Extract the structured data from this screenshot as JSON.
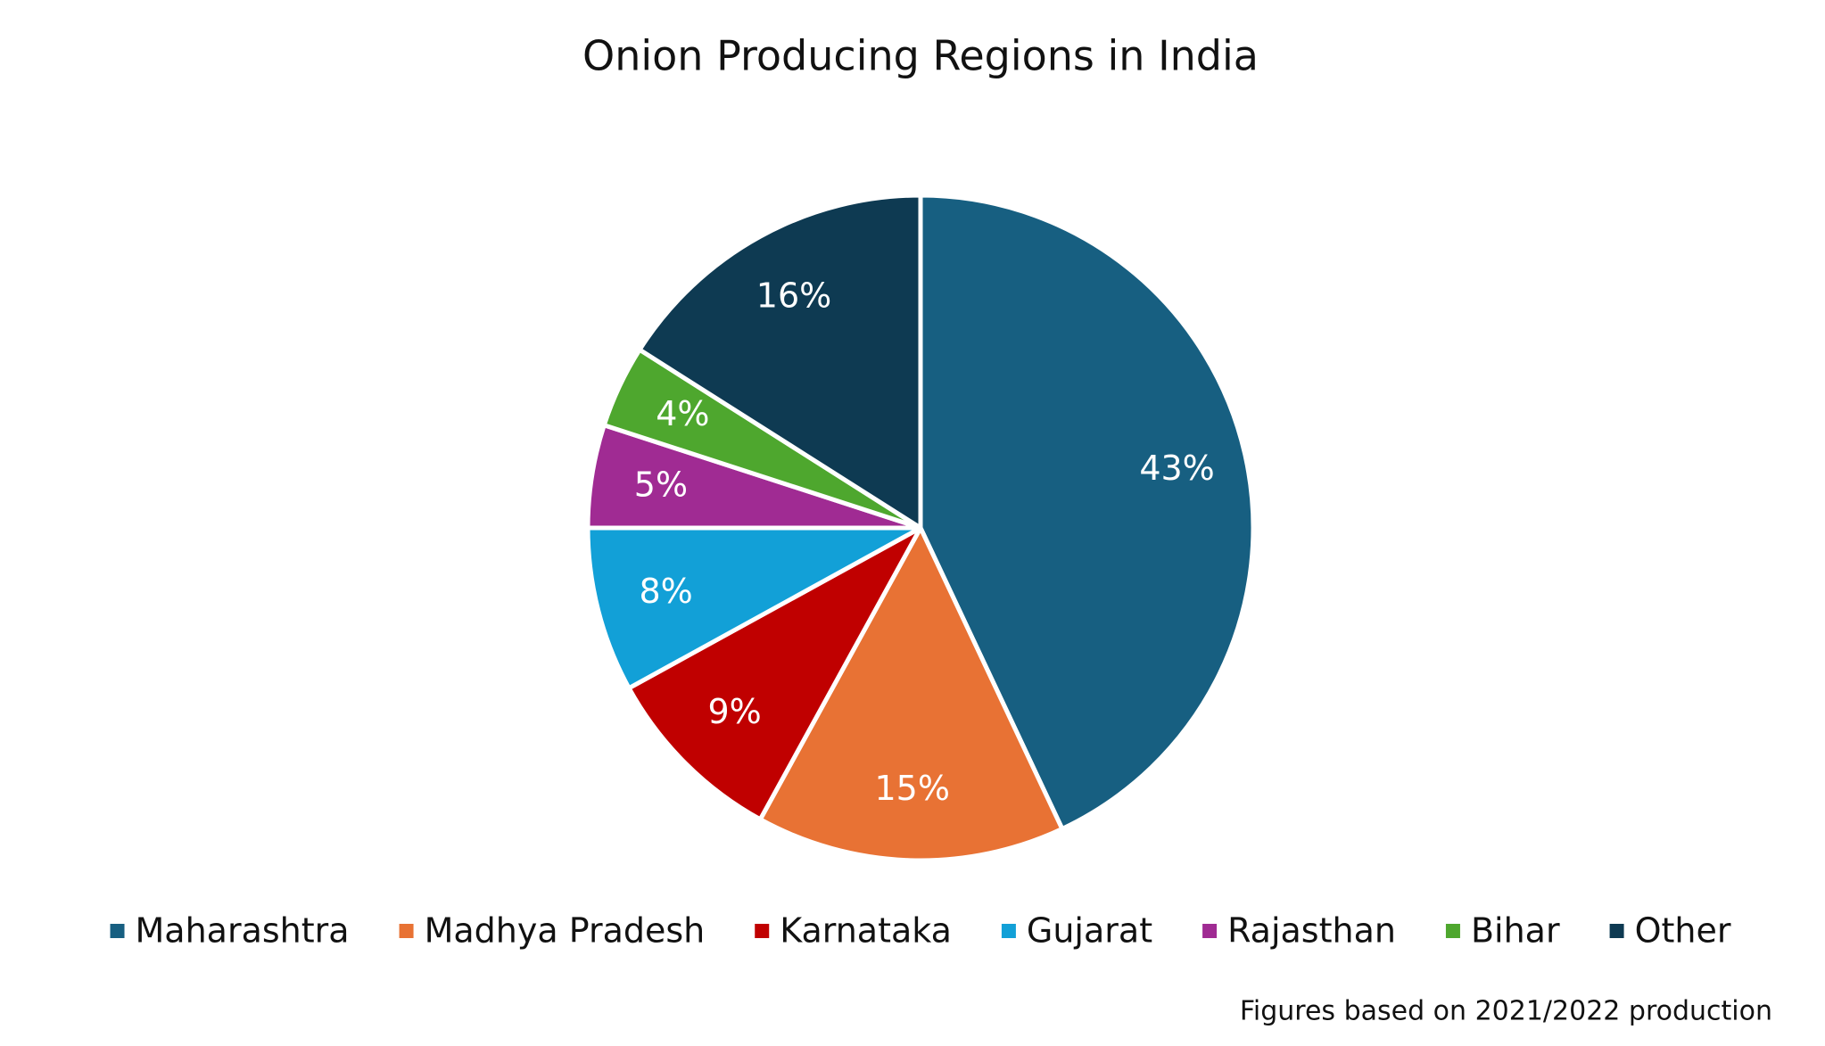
{
  "chart_data": {
    "type": "pie",
    "title": "Onion Producing Regions in India",
    "categories": [
      "Maharashtra",
      "Madhya Pradesh",
      "Karnataka",
      "Gujarat",
      "Rajasthan",
      "Bihar",
      "Other"
    ],
    "values": [
      43,
      15,
      9,
      8,
      5,
      4,
      16
    ],
    "value_labels": [
      "43%",
      "15%",
      "9%",
      "8%",
      "5%",
      "4%",
      "16%"
    ],
    "colors": [
      "#175f81",
      "#e87234",
      "#c00000",
      "#12a0d7",
      "#a02b93",
      "#4ea72e",
      "#0e3a52"
    ],
    "legend": "bottom",
    "note": "Figures based on 2021/2022 production"
  }
}
